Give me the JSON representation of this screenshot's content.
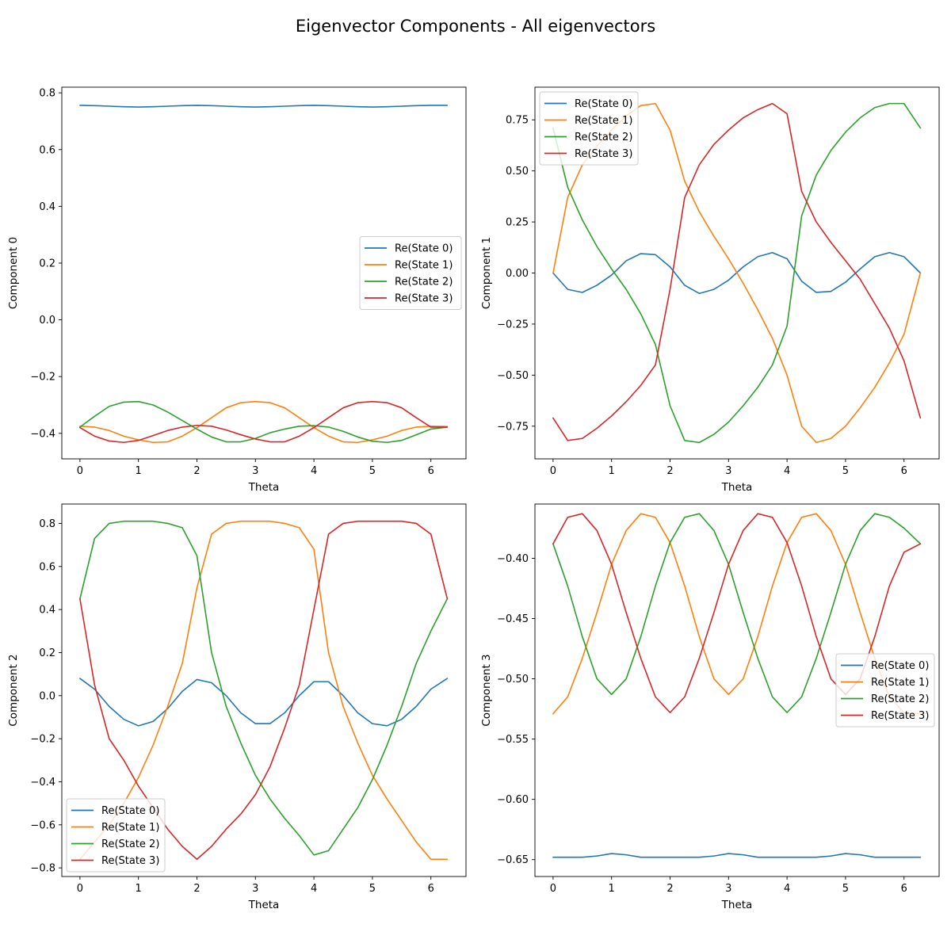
{
  "figure": {
    "title": "Eigenvector Components - All eigenvectors"
  },
  "colors": {
    "State 0": "#1f77b4",
    "State 1": "#ff7f0e",
    "State 2": "#2ca02c",
    "State 3": "#d62728"
  },
  "chart_data": [
    {
      "type": "line",
      "xlabel": "Theta",
      "ylabel": "Component 0",
      "xlim": [
        -0.31,
        6.6
      ],
      "ylim": [
        -0.49,
        0.82
      ],
      "xticks": [
        "0",
        "1",
        "2",
        "3",
        "4",
        "5",
        "6"
      ],
      "yticks": [
        "−0.4",
        "−0.2",
        "0.0",
        "0.2",
        "0.4",
        "0.6",
        "0.8"
      ],
      "legend_position": "center-right",
      "x": [
        0,
        0.25,
        0.5,
        0.75,
        1.0,
        1.25,
        1.5,
        1.75,
        2.0,
        2.25,
        2.5,
        2.75,
        3.0,
        3.25,
        3.5,
        3.75,
        4.0,
        4.25,
        4.5,
        4.75,
        5.0,
        5.25,
        5.5,
        5.75,
        6.0,
        6.28
      ],
      "series": [
        {
          "name": "Re(State 0)",
          "color": "#1f77b4",
          "values": [
            0.756,
            0.755,
            0.753,
            0.751,
            0.75,
            0.751,
            0.753,
            0.755,
            0.756,
            0.755,
            0.753,
            0.751,
            0.75,
            0.751,
            0.753,
            0.755,
            0.756,
            0.755,
            0.753,
            0.751,
            0.75,
            0.751,
            0.753,
            0.755,
            0.756,
            0.756
          ]
        },
        {
          "name": "Re(State 1)",
          "color": "#ff7f0e",
          "values": [
            -0.375,
            -0.378,
            -0.39,
            -0.41,
            -0.423,
            -0.432,
            -0.43,
            -0.41,
            -0.38,
            -0.345,
            -0.31,
            -0.292,
            -0.288,
            -0.292,
            -0.31,
            -0.345,
            -0.38,
            -0.41,
            -0.43,
            -0.432,
            -0.423,
            -0.41,
            -0.39,
            -0.378,
            -0.375,
            -0.376
          ]
        },
        {
          "name": "Re(State 2)",
          "color": "#2ca02c",
          "values": [
            -0.378,
            -0.34,
            -0.305,
            -0.29,
            -0.288,
            -0.3,
            -0.325,
            -0.355,
            -0.385,
            -0.413,
            -0.43,
            -0.43,
            -0.418,
            -0.398,
            -0.385,
            -0.375,
            -0.373,
            -0.378,
            -0.393,
            -0.413,
            -0.428,
            -0.432,
            -0.425,
            -0.405,
            -0.385,
            -0.378
          ]
        },
        {
          "name": "Re(State 3)",
          "color": "#d62728",
          "values": [
            -0.38,
            -0.41,
            -0.427,
            -0.432,
            -0.425,
            -0.408,
            -0.39,
            -0.378,
            -0.372,
            -0.375,
            -0.388,
            -0.405,
            -0.42,
            -0.43,
            -0.43,
            -0.41,
            -0.38,
            -0.345,
            -0.31,
            -0.292,
            -0.288,
            -0.292,
            -0.31,
            -0.345,
            -0.378,
            -0.378
          ]
        }
      ]
    },
    {
      "type": "line",
      "xlabel": "Theta",
      "ylabel": "Component 1",
      "xlim": [
        -0.31,
        6.6
      ],
      "ylim": [
        -0.91,
        0.91
      ],
      "xticks": [
        "0",
        "1",
        "2",
        "3",
        "4",
        "5",
        "6"
      ],
      "yticks": [
        "−0.75",
        "−0.50",
        "−0.25",
        "0.00",
        "0.25",
        "0.50",
        "0.75"
      ],
      "legend_position": "top-left",
      "x": [
        0,
        0.25,
        0.5,
        0.75,
        1.0,
        1.25,
        1.5,
        1.75,
        2.0,
        2.25,
        2.5,
        2.75,
        3.0,
        3.25,
        3.5,
        3.75,
        4.0,
        4.25,
        4.5,
        4.75,
        5.0,
        5.25,
        5.5,
        5.75,
        6.0,
        6.28
      ],
      "series": [
        {
          "name": "Re(State 0)",
          "color": "#1f77b4",
          "values": [
            0.0,
            -0.08,
            -0.095,
            -0.06,
            -0.01,
            0.06,
            0.095,
            0.09,
            0.03,
            -0.06,
            -0.1,
            -0.08,
            -0.035,
            0.03,
            0.08,
            0.1,
            0.07,
            -0.04,
            -0.095,
            -0.09,
            -0.045,
            0.02,
            0.08,
            0.1,
            0.08,
            0.0
          ]
        },
        {
          "name": "Re(State 1)",
          "color": "#ff7f0e",
          "values": [
            0.0,
            0.37,
            0.53,
            0.62,
            0.7,
            0.77,
            0.82,
            0.83,
            0.7,
            0.45,
            0.3,
            0.18,
            0.07,
            -0.05,
            -0.18,
            -0.32,
            -0.5,
            -0.75,
            -0.83,
            -0.81,
            -0.75,
            -0.66,
            -0.56,
            -0.44,
            -0.3,
            0.0
          ]
        },
        {
          "name": "Re(State 2)",
          "color": "#2ca02c",
          "values": [
            0.71,
            0.42,
            0.26,
            0.13,
            0.02,
            -0.08,
            -0.2,
            -0.35,
            -0.65,
            -0.82,
            -0.83,
            -0.79,
            -0.73,
            -0.65,
            -0.56,
            -0.45,
            -0.26,
            0.28,
            0.48,
            0.6,
            0.69,
            0.76,
            0.81,
            0.83,
            0.83,
            0.71
          ]
        },
        {
          "name": "Re(State 3)",
          "color": "#d62728",
          "values": [
            -0.71,
            -0.82,
            -0.81,
            -0.76,
            -0.7,
            -0.63,
            -0.55,
            -0.45,
            -0.08,
            0.37,
            0.53,
            0.63,
            0.7,
            0.76,
            0.8,
            0.83,
            0.78,
            0.4,
            0.25,
            0.15,
            0.06,
            -0.03,
            -0.15,
            -0.27,
            -0.43,
            -0.71
          ]
        }
      ]
    },
    {
      "type": "line",
      "xlabel": "Theta",
      "ylabel": "Component 2",
      "xlim": [
        -0.31,
        6.6
      ],
      "ylim": [
        -0.84,
        0.89
      ],
      "xticks": [
        "0",
        "1",
        "2",
        "3",
        "4",
        "5",
        "6"
      ],
      "yticks": [
        "−0.8",
        "−0.6",
        "−0.4",
        "−0.2",
        "0.0",
        "0.2",
        "0.4",
        "0.6",
        "0.8"
      ],
      "legend_position": "bottom-left",
      "x": [
        0,
        0.25,
        0.5,
        0.75,
        1.0,
        1.25,
        1.5,
        1.75,
        2.0,
        2.25,
        2.5,
        2.75,
        3.0,
        3.25,
        3.5,
        3.75,
        4.0,
        4.25,
        4.5,
        4.75,
        5.0,
        5.25,
        5.5,
        5.75,
        6.0,
        6.28
      ],
      "series": [
        {
          "name": "Re(State 0)",
          "color": "#1f77b4",
          "values": [
            0.08,
            0.03,
            -0.05,
            -0.11,
            -0.14,
            -0.12,
            -0.06,
            0.02,
            0.075,
            0.06,
            0.0,
            -0.08,
            -0.13,
            -0.13,
            -0.08,
            0.0,
            0.065,
            0.065,
            0.0,
            -0.08,
            -0.13,
            -0.14,
            -0.11,
            -0.05,
            0.03,
            0.08
          ]
        },
        {
          "name": "Re(State 1)",
          "color": "#ff7f0e",
          "values": [
            -0.76,
            -0.68,
            -0.6,
            -0.5,
            -0.38,
            -0.23,
            -0.05,
            0.15,
            0.5,
            0.75,
            0.8,
            0.81,
            0.81,
            0.81,
            0.8,
            0.78,
            0.68,
            0.2,
            -0.05,
            -0.22,
            -0.37,
            -0.48,
            -0.58,
            -0.68,
            -0.76,
            -0.76
          ]
        },
        {
          "name": "Re(State 2)",
          "color": "#2ca02c",
          "values": [
            0.45,
            0.73,
            0.8,
            0.81,
            0.81,
            0.81,
            0.8,
            0.78,
            0.65,
            0.2,
            -0.05,
            -0.22,
            -0.37,
            -0.48,
            -0.57,
            -0.65,
            -0.74,
            -0.72,
            -0.62,
            -0.52,
            -0.39,
            -0.23,
            -0.05,
            0.15,
            0.3,
            0.45
          ]
        },
        {
          "name": "Re(State 3)",
          "color": "#d62728",
          "values": [
            0.45,
            0.05,
            -0.2,
            -0.3,
            -0.42,
            -0.52,
            -0.62,
            -0.7,
            -0.76,
            -0.7,
            -0.62,
            -0.55,
            -0.46,
            -0.33,
            -0.15,
            0.05,
            0.4,
            0.75,
            0.8,
            0.81,
            0.81,
            0.81,
            0.81,
            0.8,
            0.75,
            0.45
          ]
        }
      ]
    },
    {
      "type": "line",
      "xlabel": "Theta",
      "ylabel": "Component 3",
      "xlim": [
        -0.31,
        6.6
      ],
      "ylim": [
        -0.664,
        -0.355
      ],
      "xticks": [
        "0",
        "1",
        "2",
        "3",
        "4",
        "5",
        "6"
      ],
      "yticks": [
        "−0.65",
        "−0.60",
        "−0.55",
        "−0.50",
        "−0.45",
        "−0.40"
      ],
      "legend_position": "center-right",
      "x": [
        0,
        0.25,
        0.5,
        0.75,
        1.0,
        1.25,
        1.5,
        1.75,
        2.0,
        2.25,
        2.5,
        2.75,
        3.0,
        3.25,
        3.5,
        3.75,
        4.0,
        4.25,
        4.5,
        4.75,
        5.0,
        5.25,
        5.5,
        5.75,
        6.0,
        6.28
      ],
      "series": [
        {
          "name": "Re(State 0)",
          "color": "#1f77b4",
          "values": [
            -0.648,
            -0.648,
            -0.648,
            -0.647,
            -0.645,
            -0.646,
            -0.648,
            -0.648,
            -0.648,
            -0.648,
            -0.648,
            -0.647,
            -0.645,
            -0.646,
            -0.648,
            -0.648,
            -0.648,
            -0.648,
            -0.648,
            -0.647,
            -0.645,
            -0.646,
            -0.648,
            -0.648,
            -0.648,
            -0.648
          ]
        },
        {
          "name": "Re(State 1)",
          "color": "#ff7f0e",
          "values": [
            -0.529,
            -0.515,
            -0.483,
            -0.445,
            -0.405,
            -0.377,
            -0.363,
            -0.366,
            -0.387,
            -0.423,
            -0.465,
            -0.5,
            -0.513,
            -0.5,
            -0.465,
            -0.423,
            -0.387,
            -0.366,
            -0.363,
            -0.377,
            -0.405,
            -0.445,
            -0.483,
            -0.515,
            -0.528,
            -0.529
          ]
        },
        {
          "name": "Re(State 2)",
          "color": "#2ca02c",
          "values": [
            -0.388,
            -0.423,
            -0.465,
            -0.5,
            -0.513,
            -0.5,
            -0.465,
            -0.423,
            -0.387,
            -0.366,
            -0.363,
            -0.377,
            -0.405,
            -0.445,
            -0.483,
            -0.515,
            -0.528,
            -0.515,
            -0.483,
            -0.445,
            -0.405,
            -0.377,
            -0.363,
            -0.366,
            -0.375,
            -0.388
          ]
        },
        {
          "name": "Re(State 3)",
          "color": "#d62728",
          "values": [
            -0.388,
            -0.366,
            -0.363,
            -0.377,
            -0.405,
            -0.445,
            -0.483,
            -0.515,
            -0.528,
            -0.515,
            -0.483,
            -0.445,
            -0.405,
            -0.377,
            -0.363,
            -0.366,
            -0.387,
            -0.423,
            -0.465,
            -0.5,
            -0.513,
            -0.5,
            -0.465,
            -0.423,
            -0.395,
            -0.388
          ]
        }
      ]
    }
  ]
}
